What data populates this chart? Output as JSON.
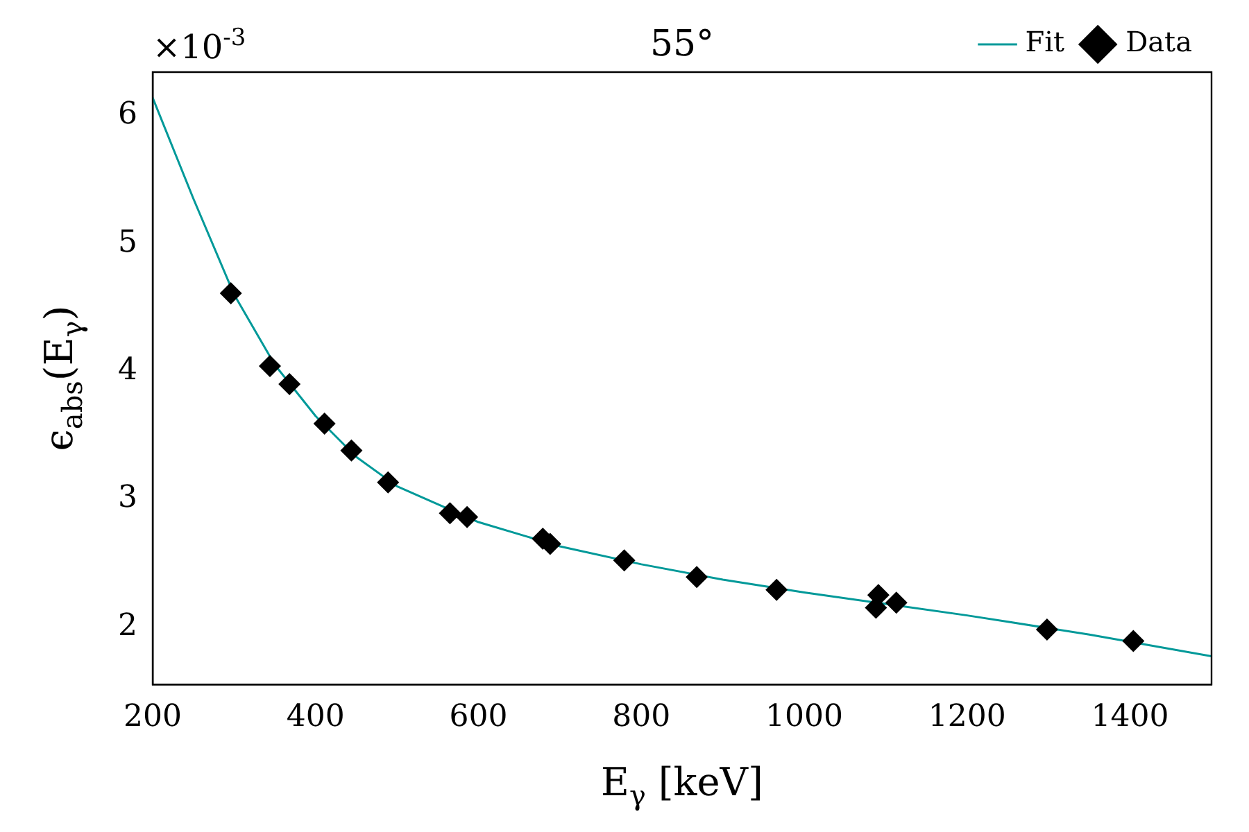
{
  "chart_data": {
    "type": "scatter",
    "title": "55°",
    "xlabel": "E$_{γ}$ [keV]",
    "ylabel": "ϵ$_{abs}$(E$_{γ}$)",
    "annotations": [
      "×10$^{-3}$"
    ],
    "xlim": [
      200,
      1500
    ],
    "xticks": [
      200,
      400,
      600,
      800,
      1000,
      1200,
      1400
    ],
    "ylim": [
      1.55,
      6.34
    ],
    "yticks": [
      2,
      3,
      4,
      5,
      6
    ],
    "grid": false,
    "legend": "top right",
    "series": [
      {
        "name": "Fit",
        "type": "line",
        "color": "#009999",
        "marker": "none",
        "line_style": "solid",
        "x": [
          200,
          250,
          300,
          350,
          400,
          450,
          500,
          600,
          700,
          800,
          900,
          1000,
          1100,
          1200,
          1250,
          1350,
          1500
        ],
        "values": [
          6.14,
          5.35,
          4.6,
          4.05,
          3.65,
          3.33,
          3.1,
          2.82,
          2.63,
          2.49,
          2.37,
          2.27,
          2.18,
          2.09,
          2.04,
          1.94,
          1.77
        ]
      },
      {
        "name": "Data",
        "color": "#000000",
        "marker": "diamond",
        "x": [
          296,
          344,
          368,
          411,
          444,
          489,
          565,
          586,
          679,
          688,
          779,
          868,
          966,
          1088,
          1091,
          1113,
          1298,
          1404
        ],
        "values": [
          4.61,
          4.04,
          3.9,
          3.59,
          3.38,
          3.13,
          2.89,
          2.86,
          2.69,
          2.65,
          2.52,
          2.39,
          2.29,
          2.15,
          2.25,
          2.19,
          1.98,
          1.89
        ]
      }
    ]
  }
}
